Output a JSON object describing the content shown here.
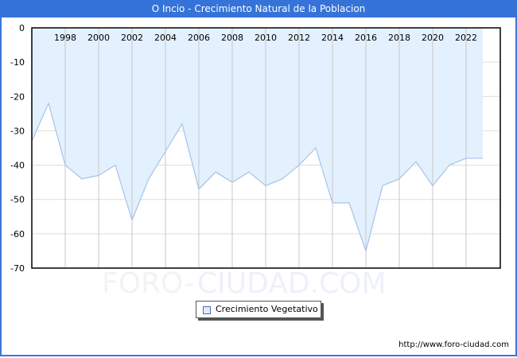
{
  "title": "O Incio - Crecimiento Natural de la Poblacion",
  "legend": {
    "label": "Crecimiento Vegetativo"
  },
  "footer": {
    "url": "http://www.foro-ciudad.com"
  },
  "watermark": {
    "part1": "FORO-",
    "part2": "CIUDAD.COM"
  },
  "colors": {
    "title_bg": "#3573d9",
    "fill": "#e3f0fd",
    "line": "#a6c3ea",
    "grid": "#dddddd",
    "vgrid": "#c8c8c8"
  },
  "chart_data": {
    "type": "area",
    "title": "O Incio - Crecimiento Natural de la Poblacion",
    "xlabel": "",
    "ylabel": "",
    "ylim": [
      -70,
      0
    ],
    "yticks": [
      0,
      -10,
      -20,
      -30,
      -40,
      -50,
      -60,
      -70
    ],
    "xtick_labels": [
      "1998",
      "2000",
      "2002",
      "2004",
      "2006",
      "2008",
      "2010",
      "2012",
      "2014",
      "2016",
      "2018",
      "2020",
      "2022"
    ],
    "grid": true,
    "legend_position": "bottom-center",
    "x": [
      1996,
      1997,
      1998,
      1999,
      2000,
      2001,
      2002,
      2003,
      2004,
      2005,
      2006,
      2007,
      2008,
      2009,
      2010,
      2011,
      2012,
      2013,
      2014,
      2015,
      2016,
      2017,
      2018,
      2019,
      2020,
      2021,
      2022,
      2023
    ],
    "series": [
      {
        "name": "Crecimiento Vegetativo",
        "values": [
          -33,
          -22,
          -40,
          -44,
          -43,
          -40,
          -56,
          -44,
          -36,
          -28,
          -47,
          -42,
          -45,
          -42,
          -46,
          -44,
          -40,
          -35,
          -51,
          -51,
          -65,
          -46,
          -44,
          -39,
          -46,
          -40,
          -38,
          -38
        ]
      }
    ]
  }
}
